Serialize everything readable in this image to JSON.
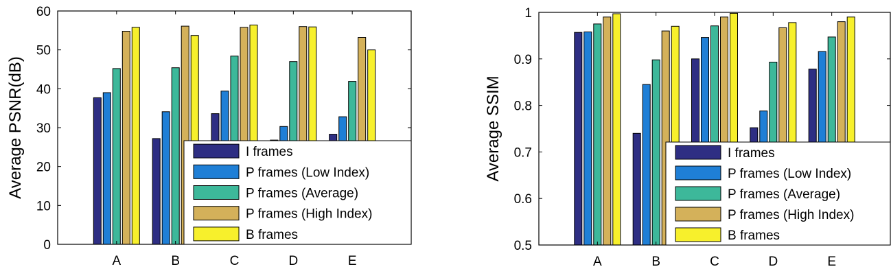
{
  "chart_data": [
    {
      "type": "bar",
      "categories": [
        "A",
        "B",
        "C",
        "D",
        "E"
      ],
      "ylabel": "Average PSNR(dB)",
      "xlabel": "",
      "ylim": [
        0,
        60
      ],
      "yticks": [
        0,
        10,
        20,
        30,
        40,
        50,
        60
      ],
      "grid": false,
      "legend_position": "bottom-right",
      "series": [
        {
          "name": "I frames",
          "color": "#2e2e83",
          "values": [
            37.7,
            27.2,
            33.6,
            26.8,
            28.3
          ]
        },
        {
          "name": "P frames (Low Index)",
          "color": "#1f7fd6",
          "values": [
            39.0,
            34.1,
            39.4,
            30.3,
            32.8
          ]
        },
        {
          "name": "P frames (Average)",
          "color": "#3db89a",
          "values": [
            45.2,
            45.4,
            48.4,
            47.0,
            41.9
          ]
        },
        {
          "name": "P frames (High Index)",
          "color": "#d4b15a",
          "values": [
            54.8,
            56.1,
            55.8,
            56.0,
            53.2
          ]
        },
        {
          "name": "B frames",
          "color": "#f7f02c",
          "values": [
            55.8,
            53.7,
            56.4,
            55.9,
            50.0
          ]
        }
      ]
    },
    {
      "type": "bar",
      "categories": [
        "A",
        "B",
        "C",
        "D",
        "E"
      ],
      "ylabel": "Average SSIM",
      "xlabel": "",
      "ylim": [
        0.5,
        1
      ],
      "yticks": [
        0.5,
        0.6,
        0.7,
        0.8,
        0.9,
        1
      ],
      "ytick_labels": [
        "0.5",
        "0.6",
        "0.7",
        "0.8",
        "0.9",
        "1"
      ],
      "grid": false,
      "legend_position": "bottom-right",
      "series": [
        {
          "name": "I frames",
          "color": "#2e2e83",
          "values": [
            0.957,
            0.74,
            0.9,
            0.752,
            0.878
          ]
        },
        {
          "name": "P frames (Low Index)",
          "color": "#1f7fd6",
          "values": [
            0.958,
            0.845,
            0.946,
            0.788,
            0.916
          ]
        },
        {
          "name": "P frames (Average)",
          "color": "#3db89a",
          "values": [
            0.975,
            0.898,
            0.971,
            0.893,
            0.947
          ]
        },
        {
          "name": "P frames (High Index)",
          "color": "#d4b15a",
          "values": [
            0.99,
            0.96,
            0.99,
            0.967,
            0.98
          ]
        },
        {
          "name": "B frames",
          "color": "#f7f02c",
          "values": [
            0.997,
            0.97,
            0.998,
            0.978,
            0.99
          ]
        }
      ]
    }
  ]
}
